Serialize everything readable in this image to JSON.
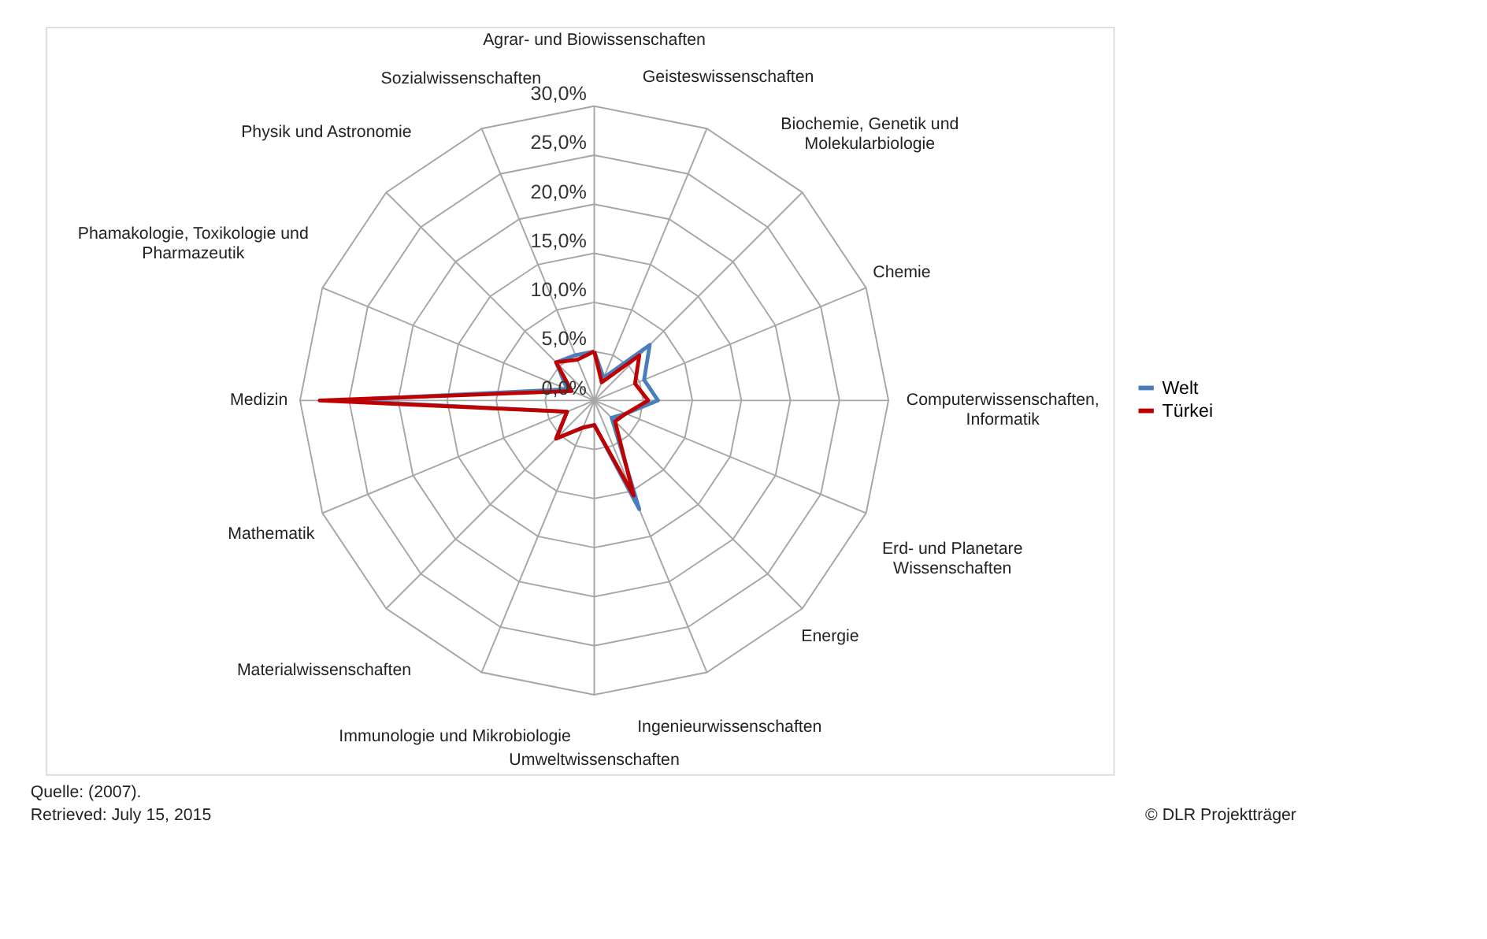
{
  "chart_data": {
    "type": "radar",
    "categories": [
      "Agrar- und Biowissenschaften",
      "Geisteswissenschaften",
      "Biochemie, Genetik und\nMolekularbiologie",
      "Chemie",
      "Computerwissenschaften,\nInformatik",
      "Erd- und Planetare\nWissenschaften",
      "Energie",
      "Ingenieurwissenschaften",
      "Umweltwissenschaften",
      "Immunologie und Mikrobiologie",
      "Materialwissenschaften",
      "Mathematik",
      "Medizin",
      "Phamakologie, Toxikologie und\nPharmazeutik",
      "Physik und Astronomie",
      "Sozialwissenschaften"
    ],
    "series": [
      {
        "name": "Welt",
        "color": "#4a7ebb",
        "values": [
          5,
          2.5,
          8,
          5.5,
          6.5,
          3.5,
          2.5,
          12,
          2.5,
          3,
          5.5,
          3,
          26,
          3,
          5.5,
          5
        ]
      },
      {
        "name": "Türkei",
        "color": "#c00000",
        "values": [
          5,
          2,
          6.5,
          4.5,
          5.5,
          3.5,
          3,
          10.5,
          2.5,
          3,
          5.5,
          3,
          28,
          2.5,
          5.5,
          4.5
        ]
      }
    ],
    "ylim": [
      0,
      30
    ],
    "yticks": [
      {
        "value": 0,
        "label": "0,0%"
      },
      {
        "value": 5,
        "label": "5,0%"
      },
      {
        "value": 10,
        "label": "10,0%"
      },
      {
        "value": 15,
        "label": "15,0%"
      },
      {
        "value": 20,
        "label": "20,0%"
      },
      {
        "value": 25,
        "label": "25,0%"
      },
      {
        "value": 30,
        "label": "30,0%"
      }
    ],
    "grid": true,
    "legend": "right",
    "annotations": [
      "Quelle: (2007).",
      "Retrieved: July 15, 2015",
      "© DLR Projektträger"
    ]
  }
}
